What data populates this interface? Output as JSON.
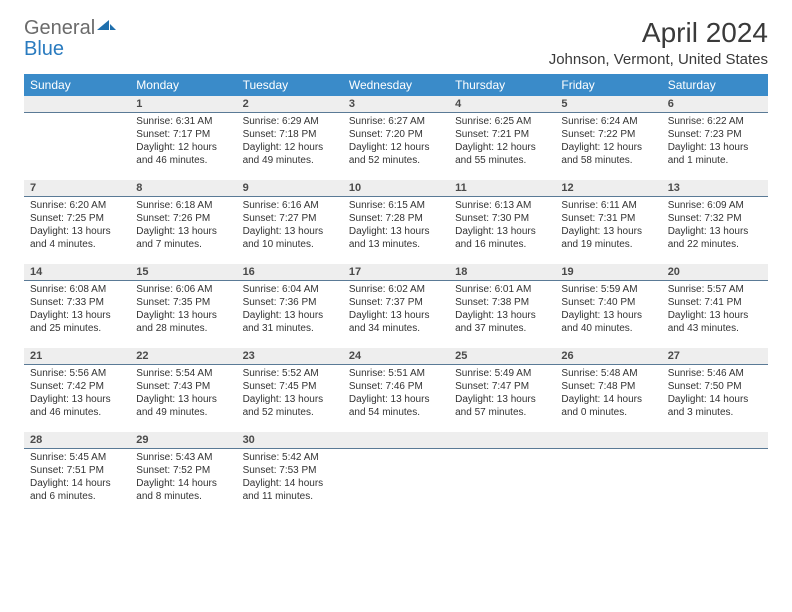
{
  "brand": {
    "textGeneral": "General",
    "textBlue": "Blue",
    "logoFill": "#1f6fad"
  },
  "titleBlock": {
    "title": "April 2024",
    "location": "Johnson, Vermont, United States"
  },
  "colors": {
    "headerBg": "#3a8bc9",
    "headerText": "#ffffff",
    "dayNumBg": "#eeeeee",
    "dayNumBorder": "#5a7a96",
    "bodyText": "#333333"
  },
  "calendar": {
    "dayNames": [
      "Sunday",
      "Monday",
      "Tuesday",
      "Wednesday",
      "Thursday",
      "Friday",
      "Saturday"
    ],
    "weeks": [
      [
        {
          "num": "",
          "lines": []
        },
        {
          "num": "1",
          "lines": [
            "Sunrise: 6:31 AM",
            "Sunset: 7:17 PM",
            "Daylight: 12 hours and 46 minutes."
          ]
        },
        {
          "num": "2",
          "lines": [
            "Sunrise: 6:29 AM",
            "Sunset: 7:18 PM",
            "Daylight: 12 hours and 49 minutes."
          ]
        },
        {
          "num": "3",
          "lines": [
            "Sunrise: 6:27 AM",
            "Sunset: 7:20 PM",
            "Daylight: 12 hours and 52 minutes."
          ]
        },
        {
          "num": "4",
          "lines": [
            "Sunrise: 6:25 AM",
            "Sunset: 7:21 PM",
            "Daylight: 12 hours and 55 minutes."
          ]
        },
        {
          "num": "5",
          "lines": [
            "Sunrise: 6:24 AM",
            "Sunset: 7:22 PM",
            "Daylight: 12 hours and 58 minutes."
          ]
        },
        {
          "num": "6",
          "lines": [
            "Sunrise: 6:22 AM",
            "Sunset: 7:23 PM",
            "Daylight: 13 hours and 1 minute."
          ]
        }
      ],
      [
        {
          "num": "7",
          "lines": [
            "Sunrise: 6:20 AM",
            "Sunset: 7:25 PM",
            "Daylight: 13 hours and 4 minutes."
          ]
        },
        {
          "num": "8",
          "lines": [
            "Sunrise: 6:18 AM",
            "Sunset: 7:26 PM",
            "Daylight: 13 hours and 7 minutes."
          ]
        },
        {
          "num": "9",
          "lines": [
            "Sunrise: 6:16 AM",
            "Sunset: 7:27 PM",
            "Daylight: 13 hours and 10 minutes."
          ]
        },
        {
          "num": "10",
          "lines": [
            "Sunrise: 6:15 AM",
            "Sunset: 7:28 PM",
            "Daylight: 13 hours and 13 minutes."
          ]
        },
        {
          "num": "11",
          "lines": [
            "Sunrise: 6:13 AM",
            "Sunset: 7:30 PM",
            "Daylight: 13 hours and 16 minutes."
          ]
        },
        {
          "num": "12",
          "lines": [
            "Sunrise: 6:11 AM",
            "Sunset: 7:31 PM",
            "Daylight: 13 hours and 19 minutes."
          ]
        },
        {
          "num": "13",
          "lines": [
            "Sunrise: 6:09 AM",
            "Sunset: 7:32 PM",
            "Daylight: 13 hours and 22 minutes."
          ]
        }
      ],
      [
        {
          "num": "14",
          "lines": [
            "Sunrise: 6:08 AM",
            "Sunset: 7:33 PM",
            "Daylight: 13 hours and 25 minutes."
          ]
        },
        {
          "num": "15",
          "lines": [
            "Sunrise: 6:06 AM",
            "Sunset: 7:35 PM",
            "Daylight: 13 hours and 28 minutes."
          ]
        },
        {
          "num": "16",
          "lines": [
            "Sunrise: 6:04 AM",
            "Sunset: 7:36 PM",
            "Daylight: 13 hours and 31 minutes."
          ]
        },
        {
          "num": "17",
          "lines": [
            "Sunrise: 6:02 AM",
            "Sunset: 7:37 PM",
            "Daylight: 13 hours and 34 minutes."
          ]
        },
        {
          "num": "18",
          "lines": [
            "Sunrise: 6:01 AM",
            "Sunset: 7:38 PM",
            "Daylight: 13 hours and 37 minutes."
          ]
        },
        {
          "num": "19",
          "lines": [
            "Sunrise: 5:59 AM",
            "Sunset: 7:40 PM",
            "Daylight: 13 hours and 40 minutes."
          ]
        },
        {
          "num": "20",
          "lines": [
            "Sunrise: 5:57 AM",
            "Sunset: 7:41 PM",
            "Daylight: 13 hours and 43 minutes."
          ]
        }
      ],
      [
        {
          "num": "21",
          "lines": [
            "Sunrise: 5:56 AM",
            "Sunset: 7:42 PM",
            "Daylight: 13 hours and 46 minutes."
          ]
        },
        {
          "num": "22",
          "lines": [
            "Sunrise: 5:54 AM",
            "Sunset: 7:43 PM",
            "Daylight: 13 hours and 49 minutes."
          ]
        },
        {
          "num": "23",
          "lines": [
            "Sunrise: 5:52 AM",
            "Sunset: 7:45 PM",
            "Daylight: 13 hours and 52 minutes."
          ]
        },
        {
          "num": "24",
          "lines": [
            "Sunrise: 5:51 AM",
            "Sunset: 7:46 PM",
            "Daylight: 13 hours and 54 minutes."
          ]
        },
        {
          "num": "25",
          "lines": [
            "Sunrise: 5:49 AM",
            "Sunset: 7:47 PM",
            "Daylight: 13 hours and 57 minutes."
          ]
        },
        {
          "num": "26",
          "lines": [
            "Sunrise: 5:48 AM",
            "Sunset: 7:48 PM",
            "Daylight: 14 hours and 0 minutes."
          ]
        },
        {
          "num": "27",
          "lines": [
            "Sunrise: 5:46 AM",
            "Sunset: 7:50 PM",
            "Daylight: 14 hours and 3 minutes."
          ]
        }
      ],
      [
        {
          "num": "28",
          "lines": [
            "Sunrise: 5:45 AM",
            "Sunset: 7:51 PM",
            "Daylight: 14 hours and 6 minutes."
          ]
        },
        {
          "num": "29",
          "lines": [
            "Sunrise: 5:43 AM",
            "Sunset: 7:52 PM",
            "Daylight: 14 hours and 8 minutes."
          ]
        },
        {
          "num": "30",
          "lines": [
            "Sunrise: 5:42 AM",
            "Sunset: 7:53 PM",
            "Daylight: 14 hours and 11 minutes."
          ]
        },
        {
          "num": "",
          "lines": []
        },
        {
          "num": "",
          "lines": []
        },
        {
          "num": "",
          "lines": []
        },
        {
          "num": "",
          "lines": []
        }
      ]
    ]
  }
}
